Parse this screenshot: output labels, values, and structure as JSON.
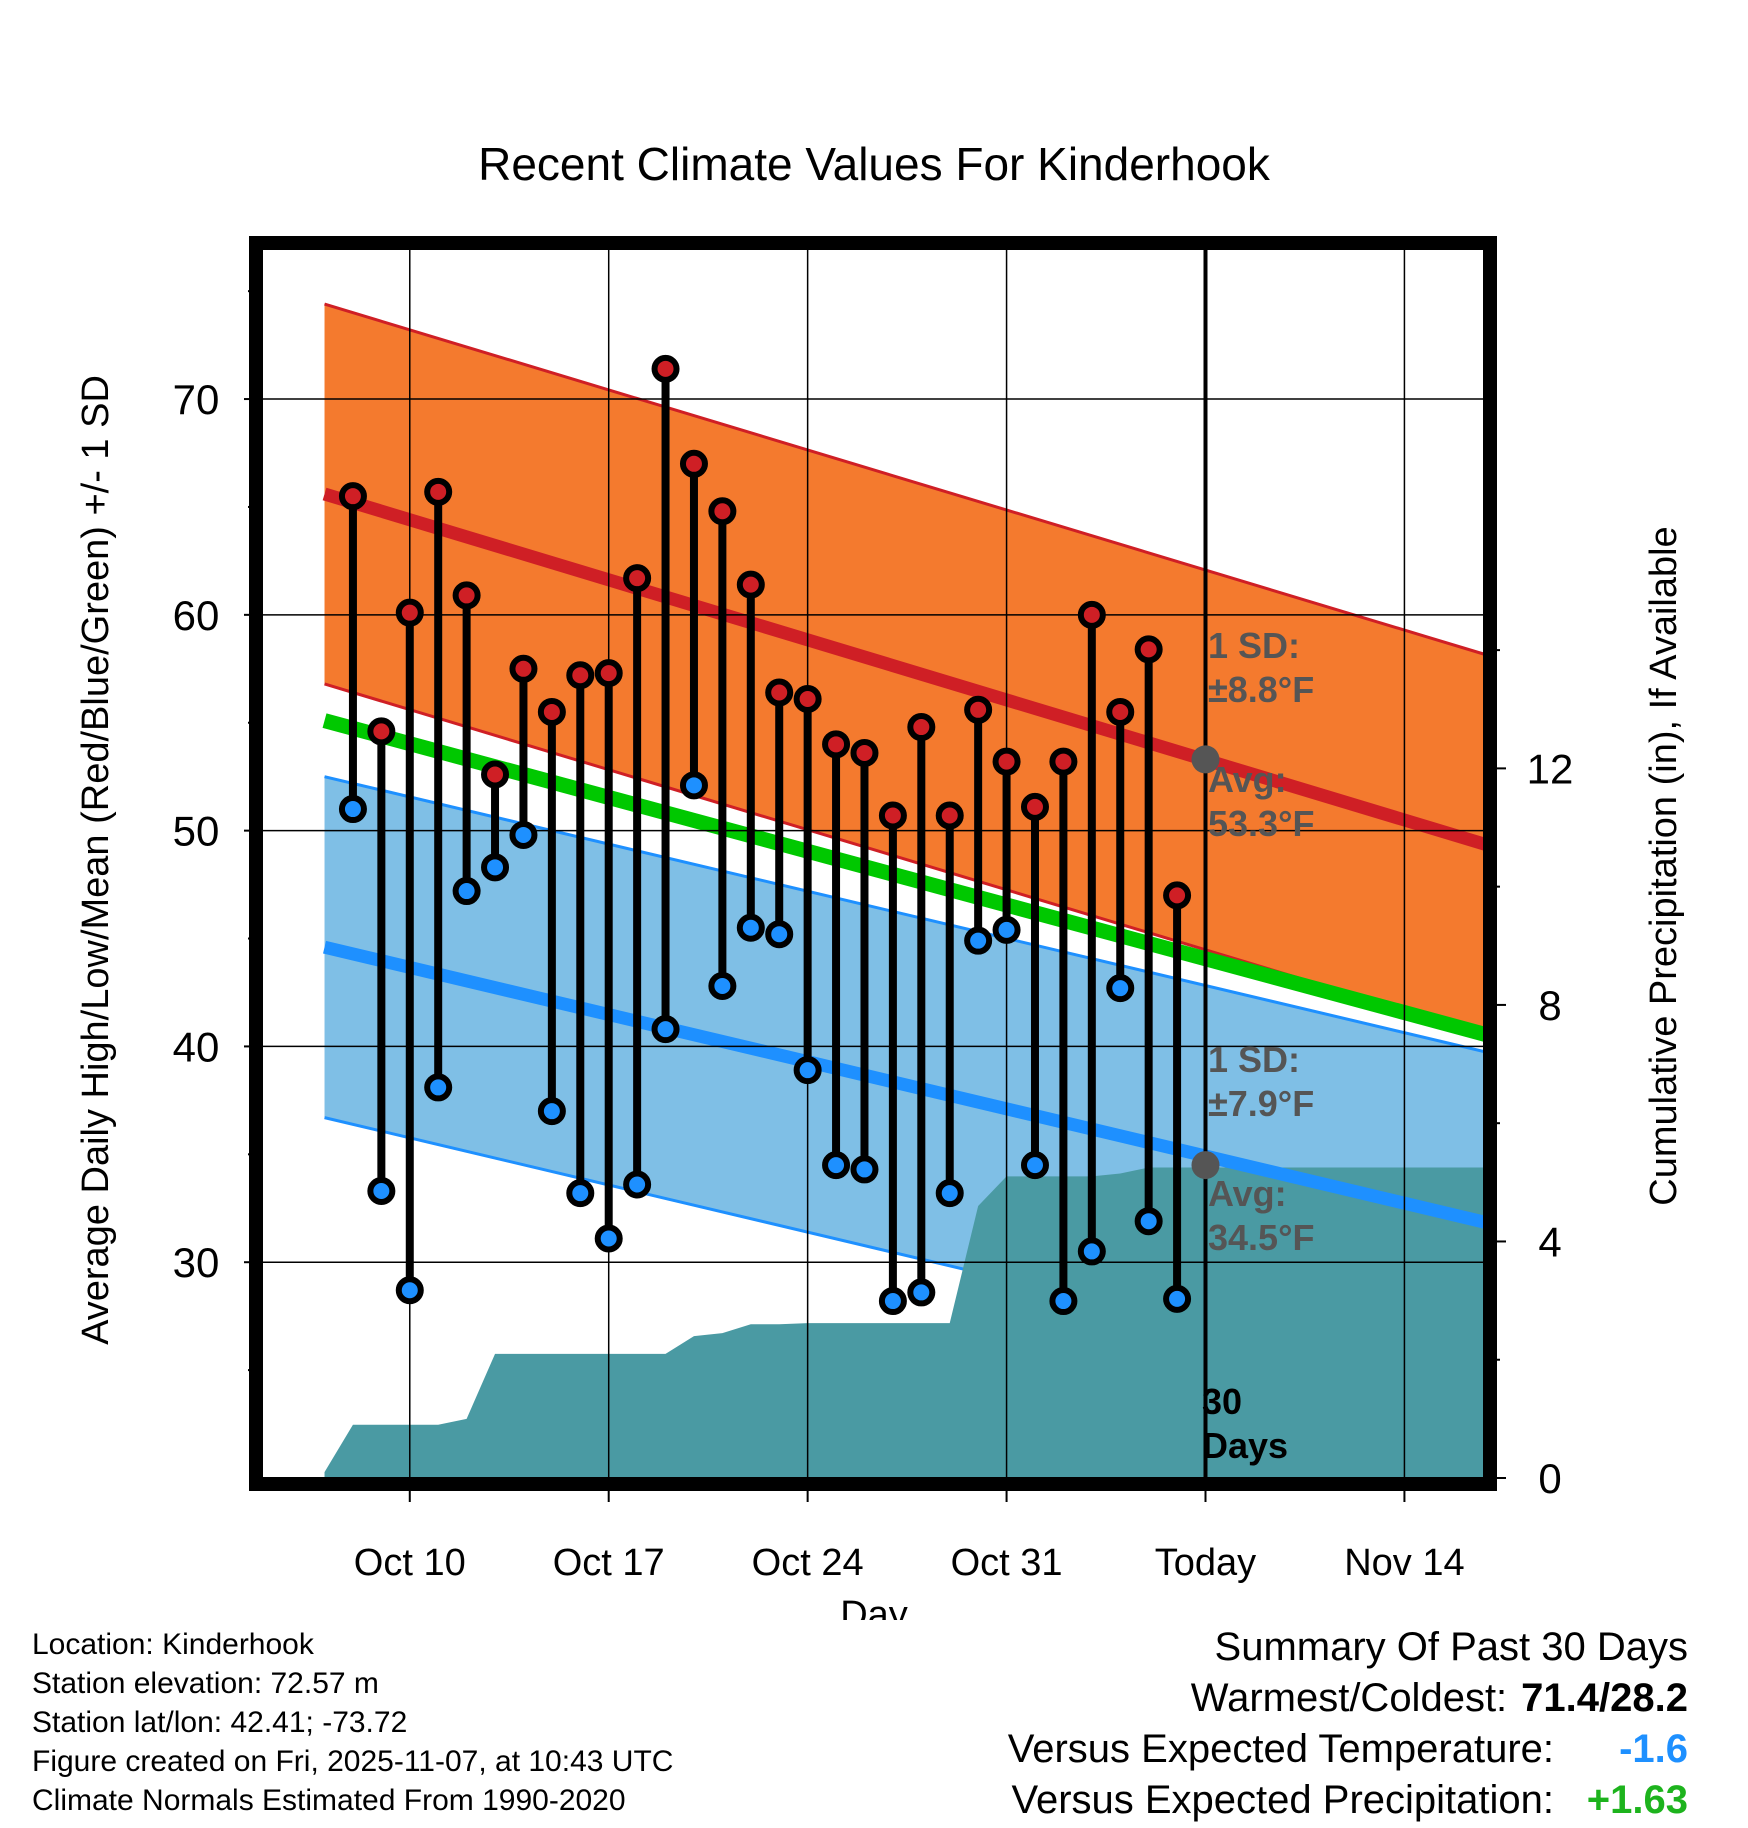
{
  "chart_data": {
    "type": "range-dot",
    "title": "Recent Climate Values For Kinderhook",
    "xlabel": "Day",
    "ylabel_left": "Average Daily High/Low/Mean (Red/Blue/Green) +/- 1 SD",
    "ylabel_right": "Cumulative Precipitation (in), If Available",
    "y_range": [
      20,
      77
    ],
    "y_ticks": [
      30,
      40,
      50,
      60,
      70
    ],
    "y_minor_ticks": [
      25,
      35,
      45,
      55,
      65,
      75
    ],
    "precip_range": [
      0,
      20.8
    ],
    "precip_ticks": [
      0,
      4,
      8,
      12
    ],
    "x_range_days": [
      -33.2,
      9.8
    ],
    "x_ticks": [
      {
        "day": -28,
        "label": "Oct 10"
      },
      {
        "day": -21,
        "label": "Oct 17"
      },
      {
        "day": -14,
        "label": "Oct 24"
      },
      {
        "day": -7,
        "label": "Oct 31"
      },
      {
        "day": 0,
        "label": "Today"
      },
      {
        "day": 7,
        "label": "Nov 14"
      }
    ],
    "daily": {
      "days": [
        -30,
        -29,
        -28,
        -27,
        -26,
        -25,
        -24,
        -23,
        -22,
        -21,
        -20,
        -19,
        -18,
        -17,
        -16,
        -15,
        -14,
        -13,
        -12,
        -11,
        -10,
        -9,
        -8,
        -7,
        -6,
        -5,
        -4,
        -3,
        -2,
        -1
      ],
      "highs": [
        65.5,
        54.6,
        60.1,
        65.7,
        60.9,
        52.6,
        57.5,
        55.5,
        57.2,
        57.3,
        61.7,
        71.4,
        67.0,
        64.8,
        61.4,
        56.4,
        56.1,
        54.0,
        53.6,
        50.7,
        54.8,
        50.7,
        55.6,
        53.2,
        51.1,
        53.2,
        60.0,
        55.5,
        58.4,
        47.0
      ],
      "lows": [
        51.0,
        33.3,
        28.7,
        38.1,
        47.2,
        48.3,
        49.8,
        37.0,
        33.2,
        31.1,
        33.6,
        40.8,
        52.1,
        42.8,
        45.5,
        45.2,
        38.9,
        34.5,
        34.3,
        28.2,
        28.6,
        33.2,
        44.9,
        45.4,
        34.5,
        28.2,
        30.5,
        42.7,
        31.9,
        28.3
      ]
    },
    "normals": {
      "high_avg": [
        65.6,
        49.3
      ],
      "high_sd": 8.8,
      "low_avg": [
        44.6,
        31.8
      ],
      "low_sd": 7.9,
      "mean_avg": [
        55.1,
        40.5
      ],
      "span_days": [
        -31,
        10
      ]
    },
    "precip": {
      "days": [
        -31,
        -30,
        -27,
        -26,
        -25,
        -24,
        -23,
        -22,
        -21,
        -20,
        -19,
        -18,
        -17,
        -16,
        -15,
        -14,
        -13,
        -12,
        -11,
        -10,
        -9,
        -8,
        -7,
        -6,
        -5,
        -4,
        -3,
        -2,
        -1,
        0,
        10
      ],
      "cumulative": [
        0.1,
        0.9,
        0.9,
        1.0,
        2.1,
        2.1,
        2.1,
        2.1,
        2.1,
        2.1,
        2.1,
        2.4,
        2.45,
        2.6,
        2.6,
        2.62,
        2.62,
        2.62,
        2.62,
        2.62,
        2.62,
        4.6,
        5.1,
        5.1,
        5.1,
        5.1,
        5.15,
        5.25,
        5.25,
        5.25,
        5.25
      ]
    },
    "annotations": {
      "high_sd_label": "1 SD:",
      "high_sd_value": "±8.8°F",
      "high_avg_label": "Avg:",
      "high_avg_value": "53.3°F",
      "high_today": 53.3,
      "low_sd_label": "1 SD:",
      "low_sd_value": "±7.9°F",
      "low_avg_label": "Avg:",
      "low_avg_value": "34.5°F",
      "low_today": 34.5,
      "days_count": "30",
      "days_label": "Days"
    },
    "colors": {
      "high_band": "#f47a2e",
      "high_line": "#cf1f25",
      "low_band": "#7fbfe6",
      "low_line": "#1e90ff",
      "mean_line": "#00c800",
      "precip_fill": "#4a9aa3",
      "high_dot": "#cf1f25",
      "low_dot": "#1e90ff",
      "annotation": "#555555"
    }
  },
  "footer": {
    "location": "Location: Kinderhook",
    "elevation": "Station elevation: 72.57 m",
    "latlon": "Station lat/lon: 42.41; -73.72",
    "created": "Figure created on Fri, 2025-11-07, at 10:43 UTC",
    "normals": "Climate Normals Estimated From 1990-2020"
  },
  "summary": {
    "heading": "Summary Of Past 30 Days",
    "warmest_label": "Warmest/Coldest:",
    "warmest_value": "71.4/28.2",
    "temp_label": "Versus Expected Temperature:",
    "temp_value": "-1.6",
    "temp_color": "#1e90ff",
    "precip_label": "Versus Expected Precipitation:",
    "precip_value": "+1.63",
    "precip_color": "#1db31d"
  }
}
